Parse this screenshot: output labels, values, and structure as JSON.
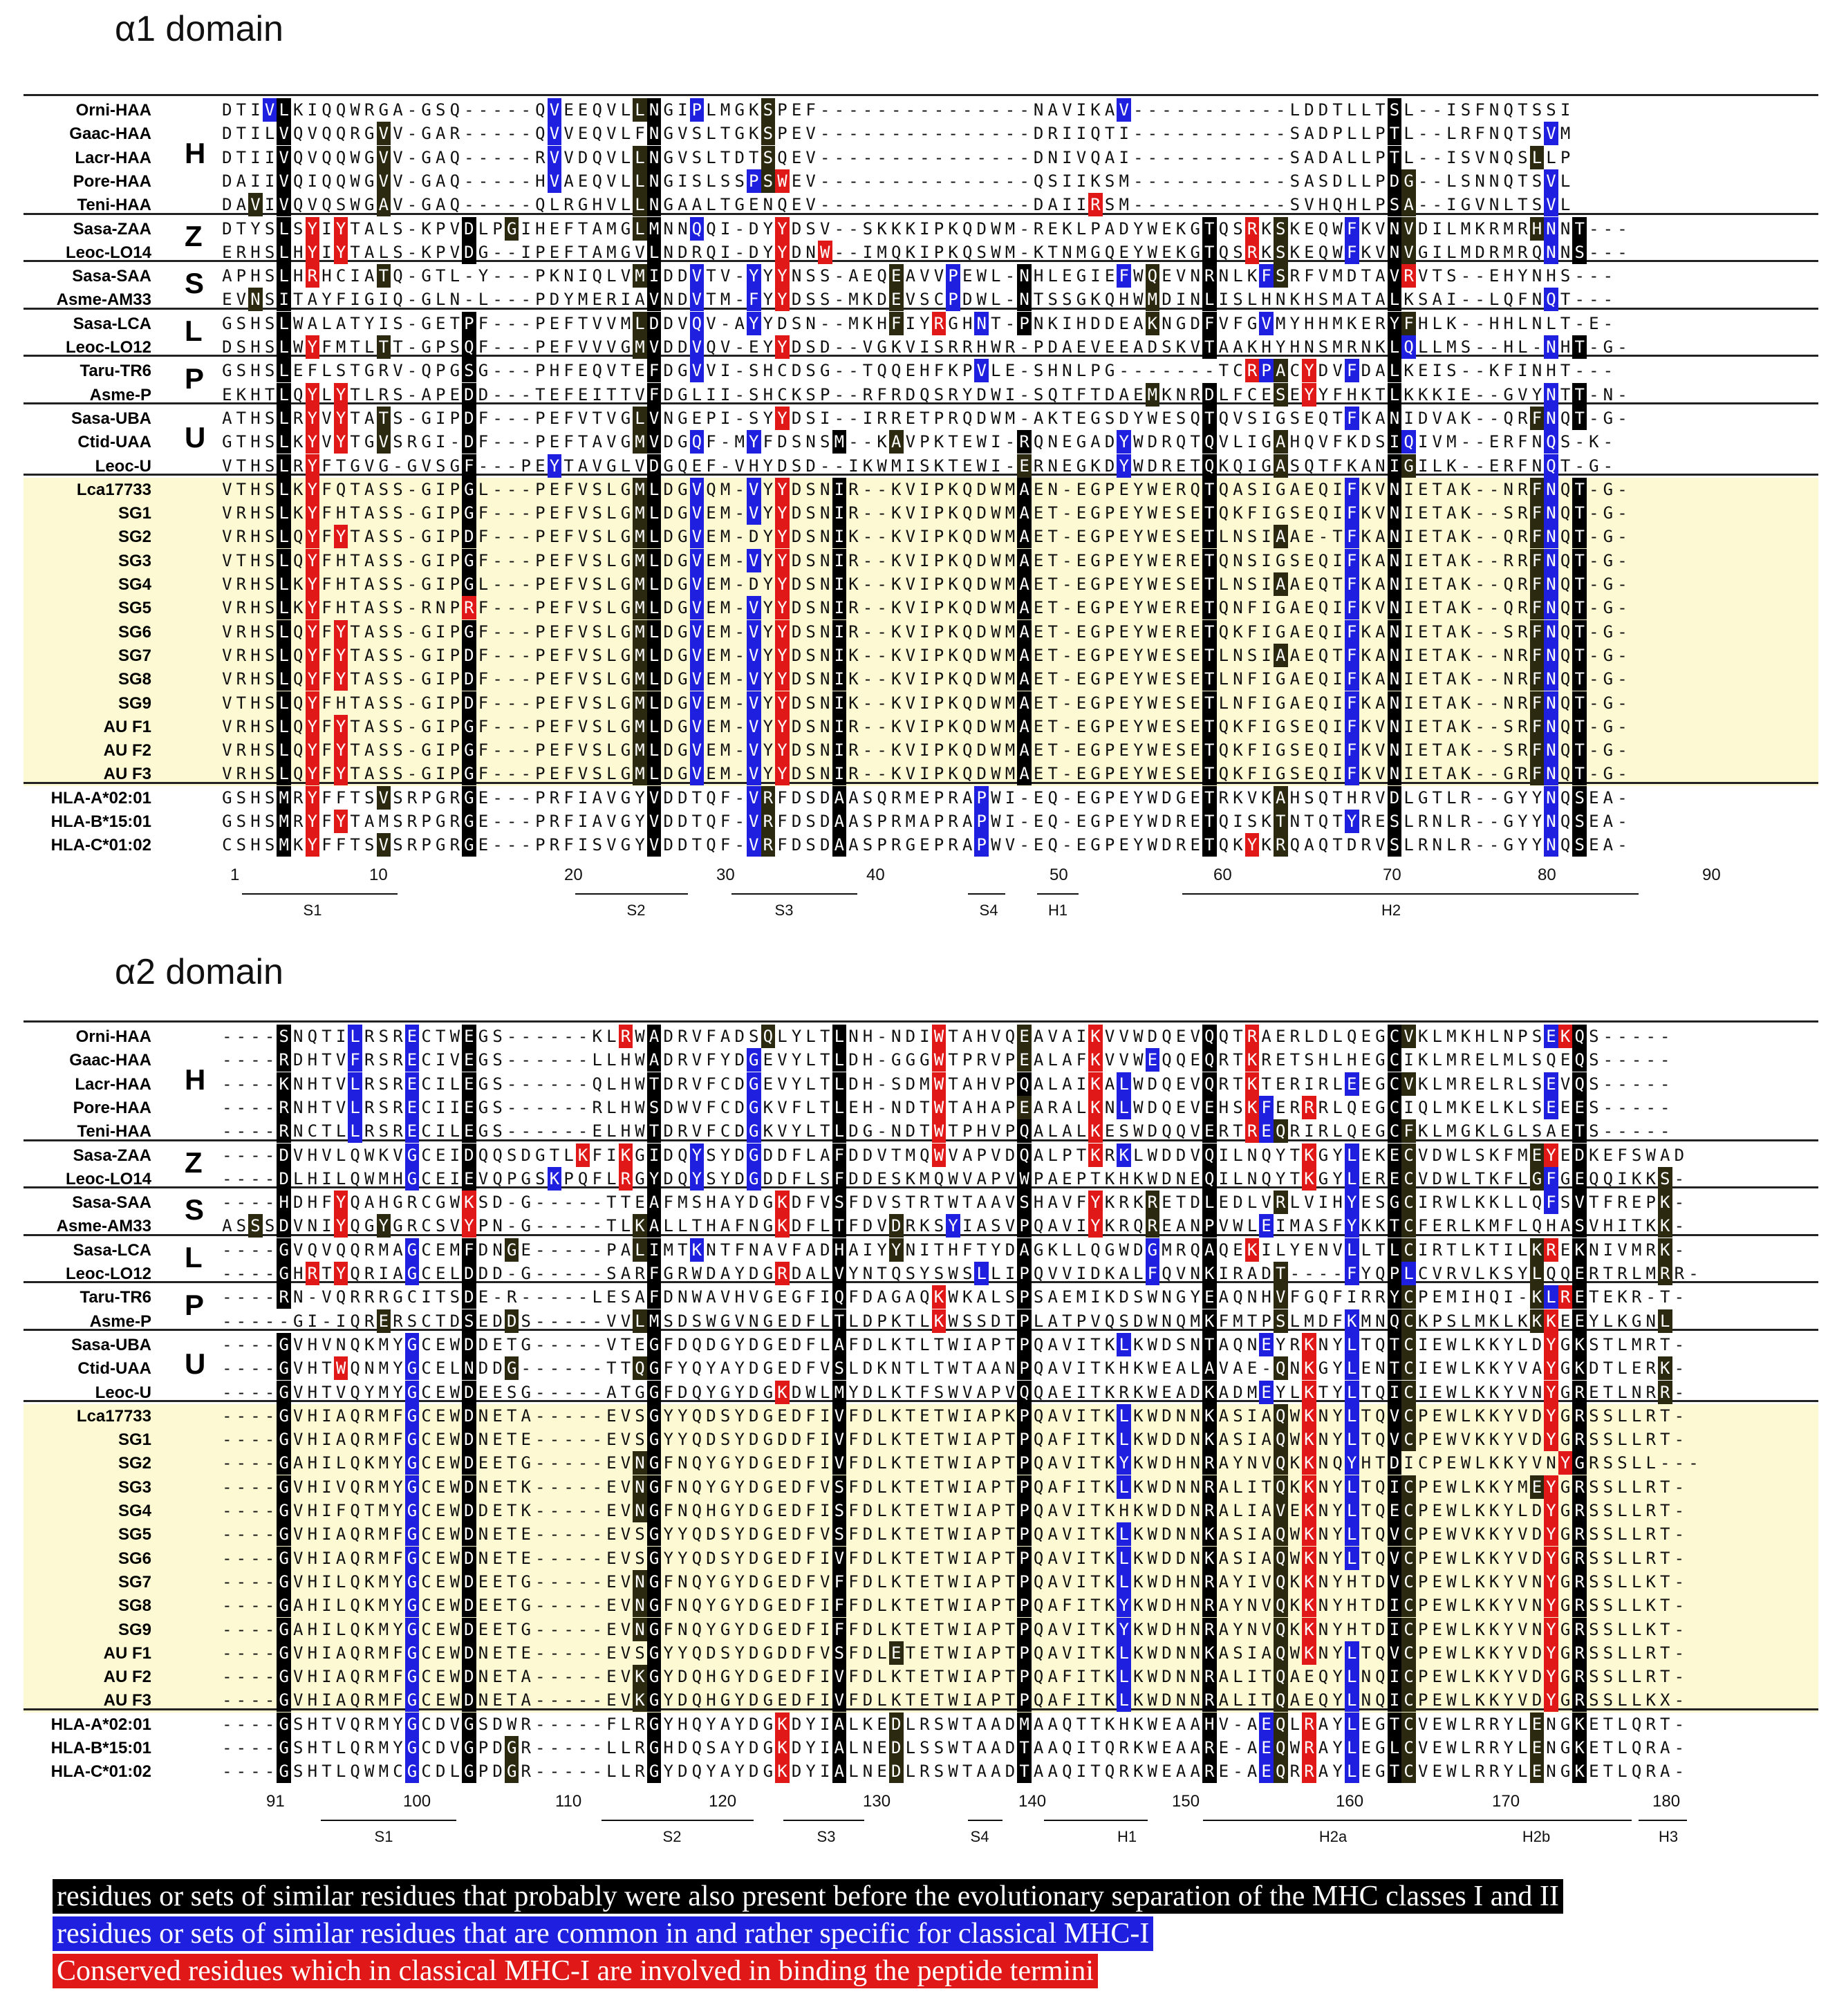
{
  "alpha1": {
    "title": "α1 domain",
    "rows": [
      {
        "name": "Orni-HAA",
        "seq": "DTIVLKIQQWRGA-GSQ-----QVEEQVLLNGIPLMGKSPEF---------------NAVIKAV-----------LDDTLLTSL--ISFNQTSSI"
      },
      {
        "name": "Gaac-HAA",
        "seq": "DTILVQVQQRGVV-GAR-----QVVEQVLFNGVSLTGKSPEV---------------DRIIQTI-----------SADPLLPTL--LRFNQTSVM"
      },
      {
        "name": "Lacr-HAA",
        "seq": "DTIIVQVQQWGVV-GAQ-----RVVDQVLLNGVSLTDTSQEV---------------DNIVQAI-----------SADALLPTL--ISVNQSLLP"
      },
      {
        "name": "Pore-HAA",
        "seq": "DAIIVQIQQWGVV-GAQ-----HVAEQVLLNGISLSSPSWEV---------------QSIIKSM-----------SASDLLPDG--LSNNQTSVL"
      },
      {
        "name": "Teni-HAA",
        "seq": "DAVIVQVQSWGAV-GAQ-----QLRGHVLLNGAALTGENQEV---------------DAIIRSM-----------SVHQHLPSA--IGVNLTSVL"
      },
      {
        "name": "Sasa-ZAA",
        "seq": "DTYSLSYIYTALS-KPVDLPGIHEFTAMGLMNNQQI-DYYDSV--SKKKIPKQDWM-REKLPADYWEKGTQSRKSKEQWFKVNVDILMKRMRHNNT---"
      },
      {
        "name": "Leoc-LO14",
        "seq": "ERHSLHYIYTALS-KPVDG--IPEFTAMGVLNDRQI-DYYDNW--IMQKIPKQSWM-KTNMGQEYWEKGTQSRKSKEQWFKVNVGILMDRMRQNNS---"
      },
      {
        "name": "Sasa-SAA",
        "seq": "APHSLHRHCIATQ-GTL-Y---PKNIQLVMIDDVTV-YYYNSS-AEQEAVVPEWL-NHLEGIEFWQEVNRNLKFSRFVMDTAVRVTS--EHYNHS---"
      },
      {
        "name": "Asme-AM33",
        "seq": "EVNSITAYFIGIQ-GLN-L---PDYMERIAVNDVTM-FYYDSS-MKDEVSCPDWL-NTSSGKQHWMDINLISLHNKHSMATALKSAI--LQFNQT---"
      },
      {
        "name": "Sasa-LCA",
        "seq": "GSHSLWALATYIS-GETPF---PEFTVVMLDDVQV-AYYDSN--MKHFIYRGHNT-PNKIHDDEAKNGDFVFGVMYHHMKERYFHLK--HHLNLT-E-"
      },
      {
        "name": "Leoc-LO12",
        "seq": "DSHSLWYFMTLTT-GPSQF---PEFVVVGMVDDVQV-EYYDSD--VGKVISRRHWR-PDAEVEEADSKVTAAKHYHNSMRNKLQLLMS--HL-NHT-G-"
      },
      {
        "name": "Taru-TR6",
        "seq": "GSHSLEFLSTGRV-QPGSG---PHFEQVTEFDGVVI-SHCDSG--TQQEHFKPVLE-SHNLPG-------TCRPACYDVFDALKEIS--KFINHT---"
      },
      {
        "name": "Asme-P",
        "seq": "EKHTLQYLYTLRS-APEDD---TEFEITTVFDGLII-SHCKSP--RFRDQSRYDWI-SQTFTDAEMKNRDLFCESEYYFHKTLKKKIE--GVYNTT-N-"
      },
      {
        "name": "Sasa-UBA",
        "seq": "ATHSLRYVYTATS-GIPDF---PEFVTVGLVNGEPI-SYYDSI--IRRETPRQDWM-AKTEGSDYWESQTQVSIGSEQTFKANIDVAK--QRFNQT-G-"
      },
      {
        "name": "Ctid-UAA",
        "seq": "GTHSLKYVYTGVSRGI-DF---PEFTAVGMVDGQF-MYFDSNSM--KAVPKTEWI-RQNEGADYWDRQTQVLIGAHQVFKDSIQIVM--ERFNQS-K-"
      },
      {
        "name": "Leoc-U",
        "seq": "VTHSLRYFTGVG-GVSGF---PEYTAVGLVDGQEF-VHYDSD--IKWMISKTEWI-ERNEGKDYWDRETQKQIGASQTFKANIGILK--ERFNQT-G-"
      },
      {
        "name": "Lca17733",
        "seq": "VTHSLKYFQTASS-GIPGL---PEFVSLGMLDGVQM-VYYDSNIR--KVIPKQDWMAEN-EGPEYWERQTQASIGAEQIFKVNIETAK--NRFNQT-G-"
      },
      {
        "name": "SG1",
        "seq": "VRHSLKYFHTASS-GIPGF---PEFVSLGMLDGVEM-VYYDSNIR--KVIPKQDWMAET-EGPEYWESETQKFIGSEQIFKVNIETAK--SRFNQT-G-"
      },
      {
        "name": "SG2",
        "seq": "VRHSLQYFYTASS-GIPDF---PEFVSLGMLDGVEM-DYYDSNIK--KVIPKQDWMAET-EGPEYWESETLNSIAAE-TFKANIETAK--QRFNQT-G-"
      },
      {
        "name": "SG3",
        "seq": "VTHSLQYFHTASS-GIPGF---PEFVSLGMLDGVEM-VYYDSNIR--KVIPKQDWMAET-EGPEYWERETQNSIGSEQIFKANIETAK--RRFNQT-G-"
      },
      {
        "name": "SG4",
        "seq": "VRHSLKYFHTASS-GIPGL---PEFVSLGMLDGVEM-DYYDSNIK--KVIPKQDWMAET-EGPEYWESETLNSIAAEQTFKANIETAK--QRFNQT-G-"
      },
      {
        "name": "SG5",
        "seq": "VRHSLKYFHTASS-RNPRF---PEFVSLGMLDGVEM-VYYDSNIR--KVIPKQDWMAET-EGPEYWERETQNFIGAEQIFKVNIETAK--QRFNQT-G-"
      },
      {
        "name": "SG6",
        "seq": "VRHSLQYFYTASS-GIPGF---PEFVSLGMLDGVEM-VYYDSNIR--KVIPKQDWMAET-EGPEYWERETQKFIGAEQIFKANIETAK--SRFNQT-G-"
      },
      {
        "name": "SG7",
        "seq": "VRHSLQYFYTASS-GIPDF---PEFVSLGMLDGVEM-VYYDSNIK--KVIPKQDWMAET-EGPEYWESETLNSIAAEQTFKANIETAK--NRFNQT-G-"
      },
      {
        "name": "SG8",
        "seq": "VRHSLQYFYTASS-GIPDF---PEFVSLGMLDGVEM-VYYDSNIK--KVIPKQDWMAET-EGPEYWESETLNFIGAEQIFKANIETAK--NRFNQT-G-"
      },
      {
        "name": "SG9",
        "seq": "VTHSLQYFHTASS-GIPDF---PEFVSLGMLDGVEM-VYYDSNIK--KVIPKQDWMAET-EGPEYWESETLNFIGAEQIFKANIETAK--NRFNQT-G-"
      },
      {
        "name": "AU F1",
        "seq": "VRHSLQYFYTASS-GIPGF---PEFVSLGMLDGVEM-VYYDSNIR--KVIPKQDWMAET-EGPEYWESETQKFIGSEQIFKVNIETAK--SRFNQT-G-"
      },
      {
        "name": "AU F2",
        "seq": "VRHSLQYFYTASS-GIPGF---PEFVSLGMLDGVEM-VYYDSNIR--KVIPKQDWMAET-EGPEYWESETQKFIGSEQIFKVNIETAK--SRFNQT-G-"
      },
      {
        "name": "AU F3",
        "seq": "VRHSLQYFYTASS-GIPGF---PEFVSLGMLDGVEM-VYYDSNIR--KVIPKQDWMAET-EGPEYWESETQKFIGSEQIFKVNIETAK--GRFNQT-G-"
      },
      {
        "name": "HLA-A*02:01",
        "seq": "GSHSMRYFFTSVSRPGRGE---PRFIAVGYVDDTQF-VRFDSDAASQRMEPRAPWI-EQ-EGPEYWDGETRKVKAHSQTHRVDLGTLR--GYYNQSEA-"
      },
      {
        "name": "HLA-B*15:01",
        "seq": "GSHSMRYFYTAMSRPGRGE---PRFIAVGYVDDTQF-VRFDSDAASPRMAPRAPWI-EQ-EGPEYWDRETQISKTNTQTYRESLRNLR--GYYNQSEA-"
      },
      {
        "name": "HLA-C*01:02",
        "seq": "CSHSMKYFFTSVSRPGRGE---PRFISVGYVDDTQF-VRFDSDAASPRGEPRAPWV-EQ-EGPEYWDRETQKYKRQAQTDRVSLRNLR--GYYNQSEA-"
      }
    ],
    "groups": [
      "H",
      "Z",
      "S",
      "L",
      "P",
      "U"
    ],
    "numbers": [
      "1",
      "10",
      "20",
      "30",
      "40",
      "50",
      "60",
      "70",
      "80",
      "90"
    ],
    "structures": [
      "S1",
      "S2",
      "S3",
      "S4",
      "H1",
      "H2"
    ]
  },
  "alpha2": {
    "title": "α2 domain",
    "rows": [
      {
        "name": "Orni-HAA",
        "seq": "----SNQTILRSRECTWEGS------KLRWADRVFADSQLYLTLNH-NDIWTAHVQEAVAIKVVWDQEVQQTRAERLDLQEGCVKLMKHLNPSEKQS-----"
      },
      {
        "name": "Gaac-HAA",
        "seq": "----RDHTVFRSRECIVEGS------LLHWADRVFYDGEVYLTLDH-GGGWTPRVPEALAFKVVWEQQEQRTKRETSHLHEGCIKLMRELMLSQEQS-----"
      },
      {
        "name": "Lacr-HAA",
        "seq": "----KNHTVLRSRECILEGS------QLHWTDRVFCDGEVYLTLDH-SDMWTAHVPQALAIKALWDQEVQRTKTERIRLEEGCVKLMRELRLSEVQS-----"
      },
      {
        "name": "Pore-HAA",
        "seq": "----RNHTVLRSRECIIEGS------RLHWSDWVFCDGKVFLTLEH-NDTWTAHAPEARALKNLWDQEVEHSKFERRRLQEGCIQLMKELKLSEEES-----"
      },
      {
        "name": "Teni-HAA",
        "seq": "----RNCTLLRSRECILEGS------ELHWTDRVFCDGKVYLTLDG-NDTWTPHVPQALALKESWDQQVERTREQRIRLQEGCFKLMGKLGLSAETS-----"
      },
      {
        "name": "Sasa-ZAA",
        "seq": "----DVHVLQWKVGCEIDQQSDGTLKFIKGIDQYSYDGDDFLAFDDVTMQWVAPVDQALPTKRKLWDDVQILNQYTKGYLEKECVDWLSKFMEYEDKEFSWAD"
      },
      {
        "name": "Leoc-LO14",
        "seq": "----DLHILQWMHGCEIEVQPGSKPQFLRGYDQYSYDGDDFLSFDDESKMQWVAPVWPAEPTKHKWDNEQILNQYTKGYLERECVDWLTKFLGFGEQQIKKS-"
      },
      {
        "name": "Sasa-SAA",
        "seq": "----HDHFYQAHGRCGWKSD-G-----TTEAFMSHAYDGKDFVSFDVSTRTWTAAVSHAVFYKRKRETDLEDLVRLVIHYESGCIRWLKKLLQFSVTFREPK-"
      },
      {
        "name": "Asme-AM33",
        "seq": "ASSSDVNIYQGYGRCSVYPN-G-----TLKALLTHAFNGKDFLTFDVDRKSYIASVPQAVIYKRQREANPVWLEIMASFYKKTCFERLKMFLQHASVHITKK-"
      },
      {
        "name": "Sasa-LCA",
        "seq": "----GVQVQQRMAGCEMFDNGE-----PALIMTKNTFNAVFADHAIYYNITHFTYDAGKLLQGWDGMRQAQEKILYENVLLTLCIRTLKTILKREKNIVMRK-"
      },
      {
        "name": "Leoc-LO12",
        "seq": "----GHRTYQRIAGCELDDD-G-----SARFGRWDAYDGRDALVYNTQSYSWSLLIPQVVIDKALFQVNKIRADT----FYQPLCVRVLKSYLQQERTRLMRR-"
      },
      {
        "name": "Taru-TR6",
        "seq": "----RN-VQRRRGCITSDE-R-----LESAFDNWAVHVGEGFIQFDAGAQKWKALSPSAEMIKDSWNGYEAQNHVFGQFIRRYCPEMIHQI-KLRETEKR-T-"
      },
      {
        "name": "Asme-P",
        "seq": "-----GI-IQRERSCTDSEDDS-----VVLMSDSWGVNGEDFLTLDPKTLKWSSDTPLATPVQSDWNQMKFMTPSLMDFKMNQCKPSLMKLKKKEEYLKGNL"
      },
      {
        "name": "Sasa-UBA",
        "seq": "----GVHVNQKMYGCEWDDETG-----VTEGFDQDGYDGEDFLAFDLKTLTWIAPTPQAVITKLKWDSNTAQNEYRKNYLTQTCIEWLKKYLDYGKSTLMRT-"
      },
      {
        "name": "Ctid-UAA",
        "seq": "----GVHTWQNMYGCELNDDG------TTQGFYQYAYDGEDFVSLDKNTLTWTAANPQAVITKHKWEALAVAE-QNKGYLENTCIEWLKKYVAYGKDTLERK-"
      },
      {
        "name": "Leoc-U",
        "seq": "----GVHTVQYMYGCEWDEESG-----ATGGFDQYGYDGKDWLMYDLKTFSWVAPVQQAEITKRKWEADKADMEYLKTYLTQICIEWLKKYVNYGRETLNRR-"
      },
      {
        "name": "Lca17733",
        "seq": "----GVHIAQRMFGCEWDNETA-----EVSGYYQDSYDGEDFIVFDLKTETWIAPKPQAVITKLKWDNNKASIAQWKNYLTQVCPEWLKKYVDYGRSSLLRT-"
      },
      {
        "name": "SG1",
        "seq": "----GVHIAQRMFGCEWDNETE-----EVSGYYQDSYDGDDFIVFDLKTETWIAPTPQAFITKLKWDDNKASIAQWKNYLTQVCPEWVKKYVDYGRSSLLRT-"
      },
      {
        "name": "SG2",
        "seq": "----GAHILQKMYGCEWDEETG-----EVNGFNQYGYDGEDFIVFDLKTETWIAPTPQAVITKYKWDHNRAYNVQKKNQYHTDICPEWLKKYVNYGRSSLL---"
      },
      {
        "name": "SG3",
        "seq": "----GVHIVQRMYGCEWDNETK-----EVNGFNQYGYDGEDFVSFDLKTETWIAPTPQAFITKLKWDNNRALITQKKNYLTQICPEWLKKYMEYGRSSLLRT-"
      },
      {
        "name": "SG4",
        "seq": "----GVHIFQTMYGCEWDDETK-----EVNGFNQHGYDGEDFISFDLKTETWIAPTPQAVITKHKWDDNRALIAVEKNYLTQECPEWLKKYLDYGRSSLLRT-"
      },
      {
        "name": "SG5",
        "seq": "----GVHIAQRMFGCEWDNETE-----EVSGYYQDSYDGEDFVSFDLKTETWIAPTPQAVITKLKWDNNKASIAQWKNYLTQVCPEWVKKYVDYGRSSLLRT-"
      },
      {
        "name": "SG6",
        "seq": "----GVHIAQRMFGCEWDNETE-----EVSGYYQDSYDGEDFIVFDLKTETWIAPTPQAVITKLKWDDNKASIAQWKNYLTQVCPEWLKKYVDYGRSSLLRT-"
      },
      {
        "name": "SG7",
        "seq": "----GVHILQKMYGCEWDEETG-----EVNGFNQYGYDGEDFVFFDLKTETWIAPTPQAVITKLKWDHNRAYIVQKKNYHTDVCPEWLKKYVNYGRSSLLKT-"
      },
      {
        "name": "SG8",
        "seq": "----GAHILQKMYGCEWDEETG-----EVNGFNQYGYDGEDFIFFDLKTETWIAPTPQAFITKYKWDHNRAYNVQKKNYHTDICPEWLKKYVNYGRSSLLKT-"
      },
      {
        "name": "SG9",
        "seq": "----GAHILQKMYGCEWDEETG-----EVNGFNQYGYDGEDFIFFDLKTETWIAPTPQAVITKYKWDHNRAYNVQKKNYHTDICPEWLKKYVNYGRSSLLKT-"
      },
      {
        "name": "AU F1",
        "seq": "----GVHIAQRMFGCEWDNETE-----EVSGYYQDSYDGDDFVSFDLETETWIAPTPQAVITKLKWDNNKASIAQWKNYLTQVCPEWLKKYVDYGRSSLLRT-"
      },
      {
        "name": "AU F2",
        "seq": "----GVHIAQRMFGCEWDNETA-----EVKGYDQHGYDGEDFIVFDLKTETWIAPTPQAFITKLKWDNNRALITQAEQYLNQICPEWLKKYVDYGRSSLLRT-"
      },
      {
        "name": "AU F3",
        "seq": "----GVHIAQRMFGCEWDNETA-----EVKGYDQHGYDGEDFIVFDLKTETWIAPTPQAFITKLKWDNNRALITQAEQYLNQICPEWLKKYVDYGRSSLLKX-"
      },
      {
        "name": "HLA-A*02:01",
        "seq": "----GSHTVQRMYGCDVGSDWR-----FLRGYHQYAYDGKDYIALKEDLRSWTAADMAAQTTKHKWEAAHV-AEQLRAYLEGTCVEWLRRYLENGKETLQRT-"
      },
      {
        "name": "HLA-B*15:01",
        "seq": "----GSHTLQRMYGCDVGPDGR-----LLRGHDQSAYDGKDYIALNEDLSSWTAADTAAQITQRKWEAARE-AEQWRAYLEGLCVEWLRRYLENGKETLQRA-"
      },
      {
        "name": "HLA-C*01:02",
        "seq": "----GSHTLQWMCGCDLGPDGR-----LLRGYDQYAYDGKDYIALNEDLRSWTAADTAAQITQRKWEAARE-AEQRRAYLEGTCVEWLRRYLENGKETLQRA-"
      }
    ],
    "groups": [
      "H",
      "Z",
      "S",
      "L",
      "P",
      "U"
    ],
    "numbers": [
      "91",
      "100",
      "110",
      "120",
      "130",
      "140",
      "150",
      "160",
      "170",
      "180"
    ],
    "structures": [
      "S1",
      "S2",
      "S3",
      "S4",
      "H1",
      "H2a",
      "H2b",
      "H3"
    ]
  },
  "legend": [
    {
      "text": "residues or sets of similar  residues that probably were also present before the evolutionary  separation of the MHC classes I and II",
      "color": "#000000"
    },
    {
      "text": "residues or sets of similar  residues that are common in and rather specific for classical  MHC-I",
      "color": "#1f1fe0"
    },
    {
      "text": "Conserved residues which in classical  MHC-I are involved in binding the peptide termini",
      "color": "#e01818"
    }
  ]
}
